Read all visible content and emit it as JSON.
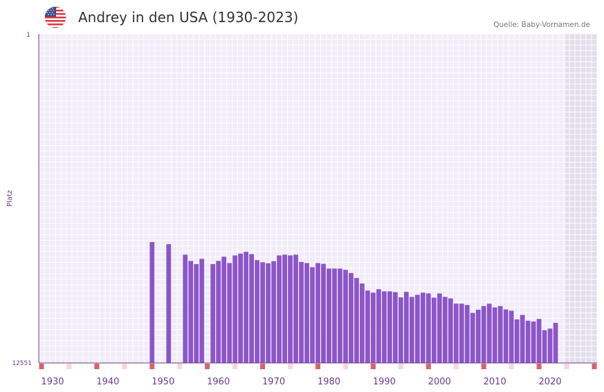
{
  "header": {
    "title": "Andrey in den USA (1930-2023)",
    "source": "Quelle: Baby-Vornamen.de",
    "flag_icon": "us-flag-icon"
  },
  "colors": {
    "bar": "#8c55c8",
    "plot_bg": "#f1ecf9",
    "grid": "#ffffff",
    "future_bg": "#e3deec",
    "axis": "#6b3a8c",
    "decade_marker": "#d9626c",
    "minor_marker": "#f6d6dc",
    "x_label": "#6b3a8c",
    "y_label": "#6b3a8c"
  },
  "chart_data": {
    "type": "bar",
    "title": "Andrey in den USA (1930-2023)",
    "ylabel": "Platz",
    "xlabel": "",
    "y_axis_inverted": true,
    "ylim": [
      1,
      12551
    ],
    "y_tick_labels": [
      "1",
      "12551"
    ],
    "x_range": [
      1928,
      2028
    ],
    "x_tick_labels": [
      "1930",
      "1940",
      "1950",
      "1960",
      "1970",
      "1980",
      "1990",
      "2000",
      "2010",
      "2020"
    ],
    "x_tick_values": [
      1930,
      1940,
      1950,
      1960,
      1970,
      1980,
      1990,
      2000,
      2010,
      2020
    ],
    "future_region_start": 2023,
    "series": [
      {
        "name": "Andrey",
        "x": [
          1948,
          1951,
          1954,
          1955,
          1956,
          1957,
          1958,
          1959,
          1960,
          1961,
          1962,
          1963,
          1964,
          1965,
          1966,
          1967,
          1968,
          1969,
          1970,
          1971,
          1972,
          1973,
          1974,
          1975,
          1976,
          1977,
          1978,
          1979,
          1980,
          1981,
          1982,
          1983,
          1984,
          1985,
          1986,
          1987,
          1988,
          1989,
          1990,
          1991,
          1992,
          1993,
          1994,
          1995,
          1996,
          1997,
          1998,
          1999,
          2000,
          2001,
          2002,
          2003,
          2004,
          2005,
          2006,
          2007,
          2008,
          2009,
          2010,
          2011,
          2012,
          2013,
          2014,
          2015,
          2016,
          2017,
          2018,
          2019,
          2020,
          2021
        ],
        "values": [
          7940,
          8020,
          8420,
          8660,
          8780,
          8580,
          12551,
          8780,
          8660,
          8500,
          8740,
          8450,
          8380,
          8310,
          8400,
          8630,
          8710,
          8750,
          8670,
          8450,
          8420,
          8450,
          8420,
          8700,
          8740,
          8900,
          8740,
          8770,
          8950,
          8950,
          8950,
          9000,
          9120,
          9310,
          9520,
          9790,
          9870,
          9740,
          9820,
          9820,
          9850,
          10050,
          9840,
          10030,
          9950,
          9870,
          9900,
          10060,
          9900,
          10030,
          10090,
          10290,
          10290,
          10340,
          10640,
          10520,
          10380,
          10290,
          10430,
          10380,
          10510,
          10560,
          10890,
          10720,
          10940,
          10970,
          10870,
          11300,
          11240,
          11020
        ]
      }
    ]
  }
}
